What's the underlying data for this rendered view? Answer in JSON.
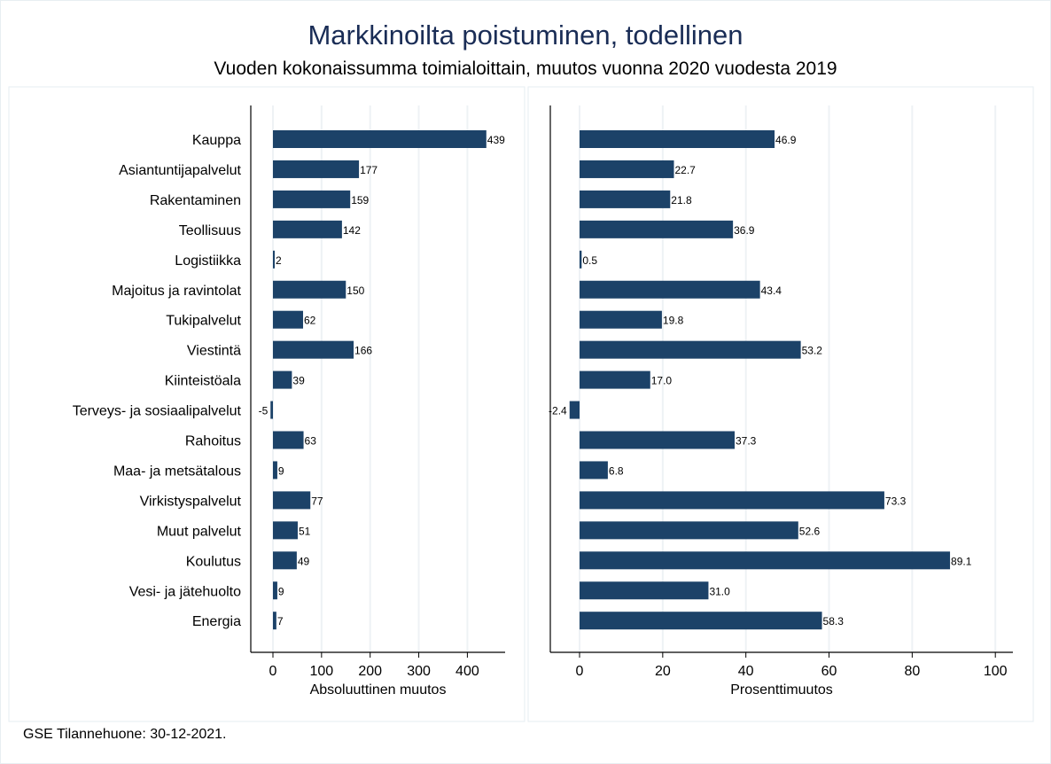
{
  "title": "Markkinoilta poistuminen, todellinen",
  "subtitle": "Vuoden kokonaissumma toimialoittain, muutos vuonna 2020 vuodesta 2019",
  "note": "GSE Tilannehuone: 30-12-2021.",
  "colors": {
    "bar": "#1c4268",
    "grid": "#eef2f5",
    "panel_border": "#e6eef2",
    "text": "#000000",
    "title": "#1a2d56"
  },
  "chart_data": {
    "type": "bar",
    "orientation": "horizontal",
    "title": "Markkinoilta poistuminen, todellinen",
    "subtitle": "Vuoden kokonaissumma toimialoittain, muutos vuonna 2020 vuodesta 2019",
    "categories": [
      "Kauppa",
      "Asiantuntijapalvelut",
      "Rakentaminen",
      "Teollisuus",
      "Logistiikka",
      "Majoitus ja ravintolat",
      "Tukipalvelut",
      "Viestintä",
      "Kiinteistöala",
      "Terveys- ja sosiaalipalvelut",
      "Rahoitus",
      "Maa- ja metsätalous",
      "Virkistyspalvelut",
      "Muut palvelut",
      "Koulutus",
      "Vesi- ja jätehuolto",
      "Energia"
    ],
    "panels": [
      {
        "xlabel": "Absoluuttinen muutos",
        "xlim": [
          -40,
          480
        ],
        "xticks": [
          0,
          100,
          200,
          300,
          400
        ],
        "xtick_labels": [
          "0",
          "100",
          "200",
          "300",
          "400"
        ],
        "grid": true,
        "values": [
          439,
          177,
          159,
          142,
          2,
          150,
          62,
          166,
          39,
          -5,
          63,
          9,
          77,
          51,
          49,
          9,
          7
        ],
        "value_labels": [
          "439",
          "177",
          "159",
          "142",
          "2",
          "150",
          "62",
          "166",
          "39",
          "-5",
          "63",
          "9",
          "77",
          "51",
          "49",
          "9",
          "7"
        ]
      },
      {
        "xlabel": "Prosenttimuutos",
        "xlim": [
          -7,
          105
        ],
        "xticks": [
          0,
          20,
          40,
          60,
          80,
          100
        ],
        "xtick_labels": [
          "0",
          "20",
          "40",
          "60",
          "80",
          "100"
        ],
        "grid": true,
        "values": [
          46.9,
          22.7,
          21.8,
          36.9,
          0.5,
          43.4,
          19.8,
          53.2,
          17.0,
          -2.4,
          37.3,
          6.8,
          73.3,
          52.6,
          89.1,
          31.0,
          58.3
        ],
        "value_labels": [
          "46.9",
          "22.7",
          "21.8",
          "36.9",
          "0.5",
          "43.4",
          "19.8",
          "53.2",
          "17.0",
          "-2.4",
          "37.3",
          "6.8",
          "73.3",
          "52.6",
          "89.1",
          "31.0",
          "58.3"
        ]
      }
    ]
  }
}
